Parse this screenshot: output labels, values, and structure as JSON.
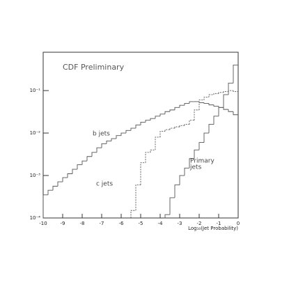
{
  "chart_data": {
    "type": "histogram",
    "title": "CDF Preliminary",
    "x_label": "Log₁₀(Jet Probability)",
    "annotations": [
      "b jets",
      "c jets",
      "Primary",
      "jets"
    ],
    "log_y": true,
    "bins": [
      -10,
      -9.75,
      -9.5,
      -9.25,
      -9,
      -8.75,
      -8.5,
      -8.25,
      -8,
      -7.75,
      -7.5,
      -7.25,
      -7,
      -6.75,
      -6.5,
      -6.25,
      -6,
      -5.75,
      -5.5,
      -5.25,
      -5,
      -4.75,
      -4.5,
      -4.25,
      -4,
      -3.75,
      -3.5,
      -3.25,
      -3,
      -2.75,
      -2.5,
      -2.25,
      -2,
      -1.75,
      -1.5,
      -1.25,
      -1,
      -0.75,
      -0.5,
      -0.25,
      0
    ],
    "series": [
      {
        "name": "b jets",
        "color": "#555555",
        "dash": "solid",
        "values": [
          0.00035,
          0.00045,
          0.00056,
          0.00071,
          0.00089,
          0.0011,
          0.0014,
          0.0018,
          0.0022,
          0.0028,
          0.0035,
          0.0045,
          0.0056,
          0.0065,
          0.0074,
          0.0087,
          0.01,
          0.0115,
          0.013,
          0.0155,
          0.018,
          0.02,
          0.022,
          0.025,
          0.028,
          0.032,
          0.035,
          0.04,
          0.045,
          0.05,
          0.055,
          0.055,
          0.052,
          0.05,
          0.046,
          0.043,
          0.04,
          0.036,
          0.032,
          0.027
        ]
      },
      {
        "name": "c jets",
        "color": "#555555",
        "dash": "dotted",
        "values": [
          null,
          null,
          null,
          null,
          null,
          null,
          null,
          null,
          null,
          null,
          null,
          null,
          null,
          null,
          null,
          null,
          null,
          null,
          0.00015,
          0.0006,
          0.002,
          0.0035,
          0.004,
          0.008,
          0.011,
          0.012,
          0.013,
          0.014,
          0.015,
          0.016,
          0.02,
          0.035,
          0.06,
          0.07,
          0.08,
          0.085,
          0.09,
          0.095,
          0.1,
          0.095
        ]
      },
      {
        "name": "Primary jets",
        "color": "#555555",
        "dash": "solid",
        "values": [
          null,
          null,
          null,
          null,
          null,
          null,
          null,
          null,
          null,
          null,
          null,
          null,
          null,
          null,
          null,
          null,
          null,
          null,
          null,
          null,
          null,
          null,
          null,
          null,
          null,
          0.00012,
          0.0003,
          0.0006,
          0.001,
          0.0015,
          0.0025,
          0.004,
          0.006,
          0.01,
          0.016,
          0.025,
          0.04,
          0.08,
          0.15,
          0.4
        ]
      }
    ],
    "xlim": [
      -10,
      0
    ],
    "xticks": [
      -10,
      -9,
      -8,
      -7,
      -6,
      -5,
      -4,
      -3,
      -2,
      -1,
      0
    ],
    "ylim": [
      0.0001,
      0.8
    ],
    "yticks": [
      {
        "value": 0.0001,
        "label": "10⁻⁴"
      },
      {
        "value": 0.001,
        "label": "10⁻³"
      },
      {
        "value": 0.01,
        "label": "10⁻²"
      },
      {
        "value": 0.1,
        "label": "10⁻¹"
      }
    ]
  }
}
